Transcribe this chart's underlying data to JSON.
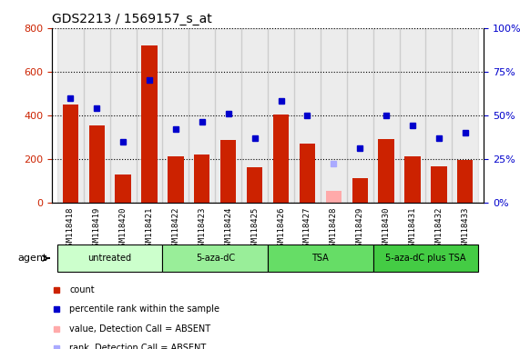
{
  "title": "GDS2213 / 1569157_s_at",
  "samples": [
    "GSM118418",
    "GSM118419",
    "GSM118420",
    "GSM118421",
    "GSM118422",
    "GSM118423",
    "GSM118424",
    "GSM118425",
    "GSM118426",
    "GSM118427",
    "GSM118428",
    "GSM118429",
    "GSM118430",
    "GSM118431",
    "GSM118432",
    "GSM118433"
  ],
  "counts": [
    450,
    355,
    130,
    720,
    210,
    220,
    285,
    160,
    405,
    270,
    null,
    110,
    290,
    210,
    165,
    195
  ],
  "absent_value": [
    null,
    null,
    null,
    null,
    null,
    null,
    null,
    null,
    null,
    null,
    55,
    null,
    null,
    null,
    null,
    null
  ],
  "percentile_rank": [
    60,
    54,
    35,
    70,
    42,
    46,
    51,
    37,
    58,
    50,
    null,
    31,
    50,
    44,
    37,
    40
  ],
  "absent_rank": [
    null,
    null,
    null,
    null,
    null,
    null,
    null,
    null,
    null,
    null,
    22,
    null,
    null,
    null,
    null,
    null
  ],
  "groups": [
    {
      "label": "untreated",
      "start": 0,
      "end": 3,
      "color": "#ccffcc"
    },
    {
      "label": "5-aza-dC",
      "start": 4,
      "end": 7,
      "color": "#99ff99"
    },
    {
      "label": "TSA",
      "start": 8,
      "end": 11,
      "color": "#66ff66"
    },
    {
      "label": "5-aza-dC plus TSA",
      "start": 12,
      "end": 15,
      "color": "#33ee33"
    }
  ],
  "bar_color": "#cc2200",
  "absent_bar_color": "#ffaaaa",
  "blue_color": "#0000cc",
  "absent_rank_color": "#aaaaff",
  "ylim_left": [
    0,
    800
  ],
  "ylim_right": [
    0,
    100
  ],
  "yticks_left": [
    0,
    200,
    400,
    600,
    800
  ],
  "ytick_labels_left": [
    "0",
    "200",
    "400",
    "600",
    "800"
  ],
  "yticks_right": [
    0,
    25,
    50,
    75,
    100
  ],
  "ytick_labels_right": [
    "0%",
    "25%",
    "50%",
    "75%",
    "100%"
  ],
  "group_row_color": "#e0e0e0",
  "xlabel": "",
  "ylabel_left": "",
  "ylabel_right": "",
  "legend_items": [
    {
      "label": "count",
      "color": "#cc2200",
      "marker": "s"
    },
    {
      "label": "percentile rank within the sample",
      "color": "#0000cc",
      "marker": "s"
    },
    {
      "label": "value, Detection Call = ABSENT",
      "color": "#ffaaaa",
      "marker": "s"
    },
    {
      "label": "rank, Detection Call = ABSENT",
      "color": "#aaaaff",
      "marker": "s"
    }
  ]
}
